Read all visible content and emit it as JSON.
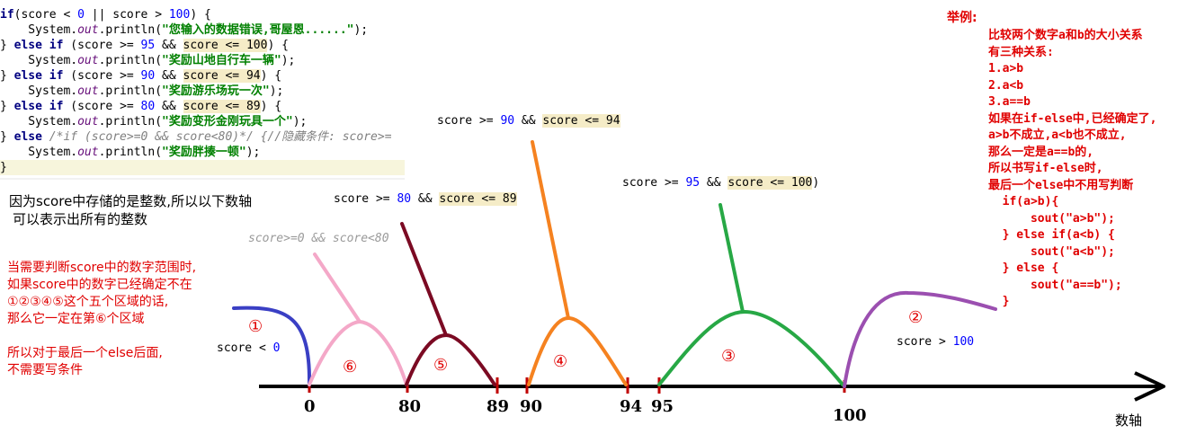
{
  "code": {
    "l1": {
      "a": "if",
      "b": "(score < ",
      "c": "0",
      "d": " || score > ",
      "e": "100",
      "f": ") {"
    },
    "l2": {
      "a": "    System.",
      "b": "out",
      "c": ".println(",
      "d": "\"您输入的数据错误,哥屋恩......\"",
      "e": ");"
    },
    "l3": {
      "a": "} ",
      "b": "else if",
      "c": " (score >= ",
      "d": "95",
      "e": " && ",
      "f": "score <= 100",
      ",g": "",
      "g": ") {"
    },
    "l4": {
      "a": "    System.",
      "b": "out",
      "c": ".println(",
      "d": "\"奖励山地自行车一辆\"",
      "e": ");"
    },
    "l5": {
      "a": "} ",
      "b": "else if",
      "c": " (score >= ",
      "d": "90",
      "e": " && ",
      "f": "score <= 94",
      "g": ") {"
    },
    "l6": {
      "a": "    System.",
      "b": "out",
      "c": ".println(",
      "d": "\"奖励游乐场玩一次\"",
      "e": ");"
    },
    "l7": {
      "a": "} ",
      "b": "else if",
      "c": " (score >= ",
      "d": "80",
      "e": " && ",
      "f": "score <= 89",
      "g": ") {"
    },
    "l8": {
      "a": "    System.",
      "b": "out",
      "c": ".println(",
      "d": "\"奖励变形金刚玩具一个\"",
      "e": ");"
    },
    "l9": {
      "a": "} ",
      "b": "else",
      "c": " /*if (score>=0 && score<80)*/ {//隐藏条件: score>="
    },
    "l10": {
      "a": "    System.",
      "b": "out",
      "c": ".println(",
      "d": "\"奖励胖揍一顿\"",
      "e": ");"
    },
    "l11": {
      "a": "}"
    }
  },
  "captions": {
    "c90": {
      "a": "score >= ",
      "b": "90",
      "c": " && ",
      "d": "score <= 94"
    },
    "c80": {
      "a": "score >= ",
      "b": "80",
      "c": " && ",
      "d": "score <= 89"
    },
    "c95": {
      "a": "score >= ",
      "b": "95",
      "c": " && ",
      "d": "score <= 100",
      "e": ")"
    },
    "c0": {
      "a": "score < ",
      "b": "0"
    },
    "c100": {
      "a": "score > ",
      "b": "100"
    },
    "c_else": "score>=0 && score<80"
  },
  "notes": {
    "int_line1": "因为score中存储的是整数,所以以下数轴",
    "int_line2": "可以表示出所有的整数",
    "red_lines": [
      "当需要判断score中的数字范围时,",
      "如果score中的数字已经确定不在",
      "①②③④⑤这个五个区域的话,",
      "那么它一定在第⑥个区域",
      "",
      "所以对于最后一个else后面,",
      "不需要写条件"
    ]
  },
  "example": {
    "title": "举例:",
    "lines": [
      "比较两个数字a和b的大小关系",
      "有三种关系:",
      "1.a>b",
      "2.a<b",
      "3.a==b",
      "如果在if-else中,已经确定了,",
      "a>b不成立,a<b也不成立,",
      "那么一定是a==b的,",
      "所以书写if-else时,",
      "最后一个else中不用写判断",
      "  if(a>b){",
      "      sout(\"a>b\");",
      "  } else if(a<b) {",
      "      sout(\"a<b\");",
      "  } else {",
      "      sout(\"a==b\");",
      "  }"
    ]
  },
  "axis": {
    "name": "数轴",
    "ticks": [
      "0",
      "80",
      "89",
      "90",
      "94",
      "95",
      "100"
    ]
  },
  "regions": {
    "r1": "①",
    "r2": "②",
    "r3": "③",
    "r4": "④",
    "r5": "⑤",
    "r6": "⑥"
  },
  "colors": {
    "blue": "#3a3fc4",
    "pink": "#f4a8c8",
    "maroon": "#7b0a23",
    "orange": "#f58220",
    "green": "#27a845",
    "purple": "#9b4fb0",
    "red": "#e00000"
  }
}
